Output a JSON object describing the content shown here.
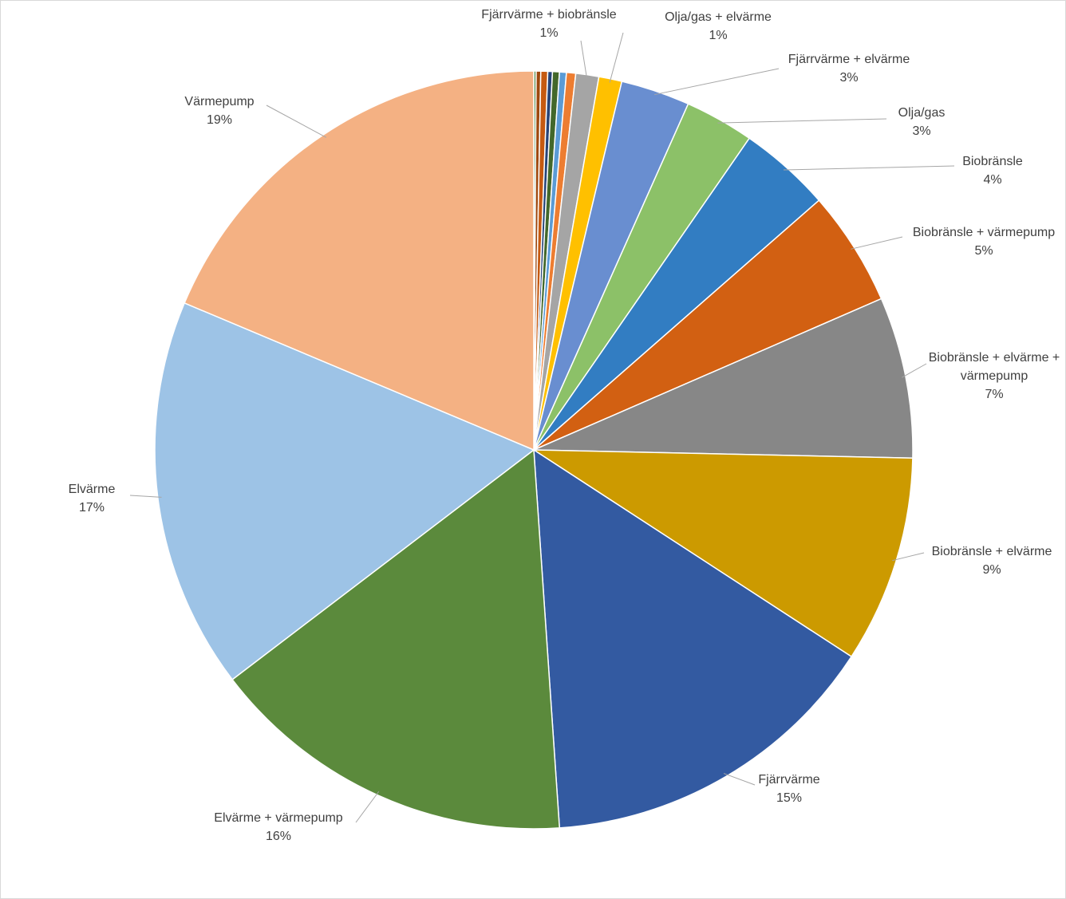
{
  "chart_data": {
    "type": "pie",
    "categories": [
      null,
      null,
      null,
      null,
      null,
      null,
      null,
      "Fjärrvärme + biobränsle",
      "Olja/gas + elvärme",
      "Fjärrvärme + elvärme",
      "Olja/gas",
      "Biobränsle",
      "Biobränsle + värmepump",
      "Biobränsle + elvärme + värmepump",
      "Biobränsle + elvärme",
      "Fjärrvärme",
      "Elvärme + värmepump",
      "Elvärme",
      "Värmepump"
    ],
    "values": [
      0.1,
      0.2,
      0.3,
      0.2,
      0.3,
      0.3,
      0.4,
      1,
      1,
      3,
      3,
      4,
      5,
      7,
      9,
      15,
      16,
      17,
      19
    ],
    "value_labels": [
      null,
      null,
      null,
      null,
      null,
      null,
      null,
      "1%",
      "1%",
      "3%",
      "3%",
      "4%",
      "5%",
      "7%",
      "9%",
      "15%",
      "16%",
      "17%",
      "19%"
    ],
    "colors": [
      "#4e8542",
      "#9e480e",
      "#c55a11",
      "#264478",
      "#43682b",
      "#5b9bd5",
      "#ed7d31",
      "#a5a5a5",
      "#ffc000",
      "#698ed0",
      "#8cc168",
      "#327dc2",
      "#d26012",
      "#878787",
      "#cc9a00",
      "#335aa1",
      "#5b8a3c",
      "#9dc3e6",
      "#f4b183"
    ]
  }
}
